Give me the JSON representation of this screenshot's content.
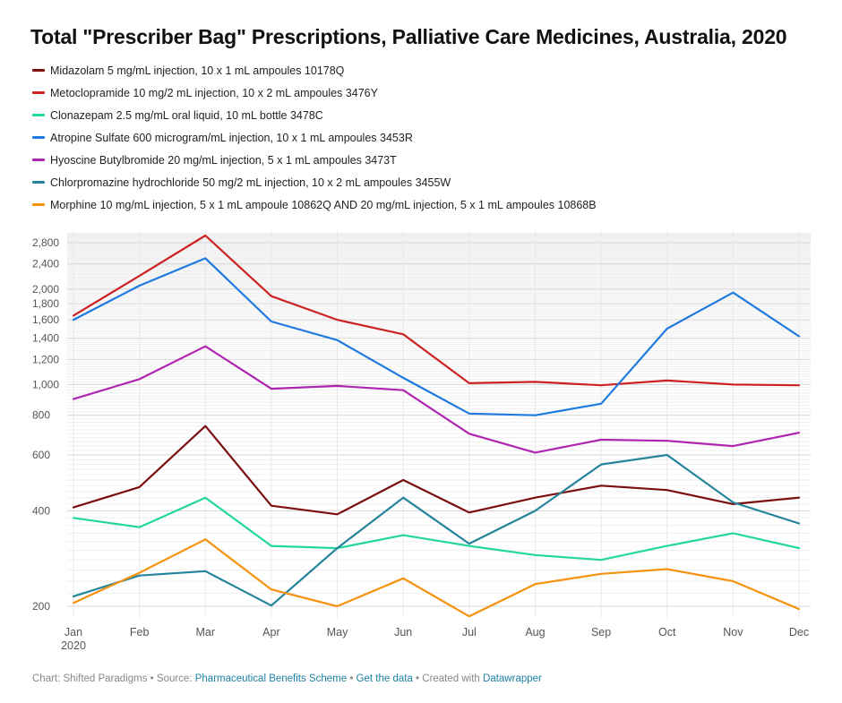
{
  "title": "Total \"Prescriber Bag\" Prescriptions, Palliative Care Medicines, Australia, 2020",
  "footer": {
    "prefix": "Chart: Shifted Paradigms • Source: ",
    "source_link": "Pharmaceutical Benefits Scheme",
    "sep1": " • ",
    "data_link": "Get the data",
    "sep2": " • Created with ",
    "tool_link": "Datawrapper"
  },
  "chart_data": {
    "type": "line",
    "title": "Total \"Prescriber Bag\" Prescriptions, Palliative Care Medicines, Australia, 2020",
    "xlabel": "",
    "ylabel": "",
    "y_scale": "log",
    "ylim": [
      186,
      3000
    ],
    "grid": true,
    "legend_position": "top",
    "categories": [
      "Jan",
      "Feb",
      "Mar",
      "Apr",
      "May",
      "Jun",
      "Jul",
      "Aug",
      "Sep",
      "Oct",
      "Nov",
      "Dec"
    ],
    "x_tick_labels": [
      "Jan",
      "Feb",
      "Mar",
      "Apr",
      "May",
      "Jun",
      "Jul",
      "Aug",
      "Sep",
      "Oct",
      "Nov",
      "Dec"
    ],
    "x_tick_sublabel": "2020",
    "y_ticks": [
      200,
      400,
      600,
      800,
      1000,
      1200,
      1400,
      1600,
      1800,
      2000,
      2400,
      2800
    ],
    "y_tick_labels": [
      "200",
      "400",
      "600",
      "800",
      "1,000",
      "1,200",
      "1,400",
      "1,600",
      "1,800",
      "2,000",
      "2,400",
      "2,800"
    ],
    "series": [
      {
        "name": "Midazolam 5 mg/mL injection, 10 x 1 mL ampoules 10178Q",
        "color": "#7b0f0f",
        "values": [
          410,
          475,
          740,
          415,
          390,
          500,
          395,
          440,
          480,
          465,
          420,
          440
        ]
      },
      {
        "name": "Metoclopramide 10 mg/2 mL injection, 10 x 2 mL ampoules 3476Y",
        "color": "#cc2222",
        "values": [
          1650,
          2200,
          2950,
          1900,
          1600,
          1440,
          1010,
          1020,
          995,
          1030,
          1000,
          995
        ]
      },
      {
        "name": "Clonazepam 2.5 mg/mL oral liquid, 10 mL bottle 3478C",
        "color": "#22d6a0",
        "values": [
          380,
          355,
          440,
          310,
          305,
          335,
          310,
          290,
          280,
          310,
          340,
          305
        ]
      },
      {
        "name": "Atropine Sulfate 600 microgram/mL injection, 10 x 1 mL ampoules 3453R",
        "color": "#1f7ae0",
        "values": [
          1600,
          2050,
          2500,
          1580,
          1380,
          1050,
          810,
          800,
          870,
          1500,
          1950,
          1420
        ]
      },
      {
        "name": "Hyoscine Butylbromide 20 mg/mL injection, 5 x 1 mL ampoules 3473T",
        "color": "#b025b0",
        "values": [
          900,
          1040,
          1320,
          970,
          990,
          960,
          700,
          610,
          670,
          665,
          640,
          705
        ]
      },
      {
        "name": "Chlorpromazine hydrochloride 50 mg/2 mL injection, 10 x 2 mL ampoules 3455W",
        "color": "#24849c",
        "values": [
          215,
          250,
          258,
          201,
          305,
          440,
          315,
          400,
          560,
          600,
          425,
          365
        ]
      },
      {
        "name": "Morphine 10 mg/mL injection, 5 x 1 mL ampoule 10862Q AND 20 mg/mL injection, 5 x 1 mL ampoules 10868B",
        "color": "#f5920f",
        "values": [
          205,
          255,
          325,
          226,
          200,
          245,
          186,
          235,
          253,
          262,
          240,
          196
        ]
      }
    ]
  }
}
